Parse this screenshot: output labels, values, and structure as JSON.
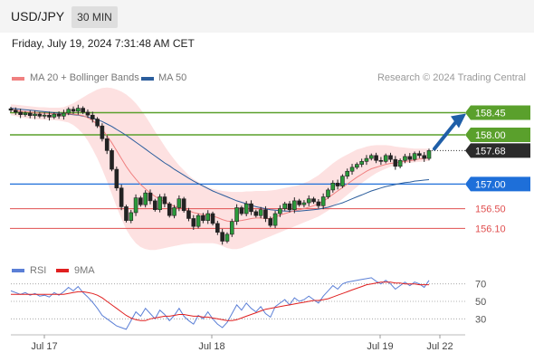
{
  "header": {
    "symbol": "USD/JPY",
    "timeframe": "30 MIN"
  },
  "timestamp": "Friday, July 19, 2024 7:31:48 AM CET",
  "legend": {
    "item1": {
      "label": "MA 20 + Bollinger Bands",
      "color": "#f08080"
    },
    "item2": {
      "label": "MA 50",
      "color": "#2b5d9c"
    }
  },
  "credit": "Research © 2024 Trading Central",
  "rsi_legend": {
    "item1": {
      "label": "RSI",
      "color": "#5b7fd6"
    },
    "item2": {
      "label": "9MA",
      "color": "#e02020"
    }
  },
  "chart_data": [
    {
      "type": "candlestick",
      "ylim": [
        155.5,
        158.9
      ],
      "x_ticks": [
        "Jul 17",
        "Jul 18",
        "Jul 19",
        "Jul 22"
      ],
      "last_price": 157.68,
      "levels": [
        {
          "value": 158.45,
          "label": "158.45",
          "style": "resistance",
          "color": "#5aa02c"
        },
        {
          "value": 158.0,
          "label": "158.00",
          "style": "resistance",
          "color": "#5aa02c"
        },
        {
          "value": 157.0,
          "label": "157.00",
          "style": "pivot",
          "color": "#1e6fd9"
        },
        {
          "value": 156.5,
          "label": "156.50",
          "style": "support",
          "color": "#e05050"
        },
        {
          "value": 156.1,
          "label": "156.10",
          "style": "support",
          "color": "#e05050"
        }
      ],
      "closes": [
        158.5,
        158.46,
        158.41,
        158.44,
        158.39,
        158.42,
        158.38,
        158.4,
        158.36,
        158.42,
        158.38,
        158.44,
        158.52,
        158.48,
        158.54,
        158.46,
        158.4,
        158.32,
        158.18,
        157.92,
        157.68,
        157.3,
        156.92,
        156.54,
        156.26,
        156.42,
        156.72,
        156.58,
        156.82,
        156.66,
        156.48,
        156.74,
        156.6,
        156.36,
        156.52,
        156.7,
        156.46,
        156.3,
        156.14,
        156.36,
        156.26,
        156.4,
        156.2,
        156.02,
        155.84,
        155.98,
        156.24,
        156.52,
        156.4,
        156.6,
        156.44,
        156.36,
        156.48,
        156.3,
        156.16,
        156.4,
        156.5,
        156.6,
        156.48,
        156.66,
        156.58,
        156.62,
        156.7,
        156.64,
        156.56,
        156.74,
        156.88,
        157.02,
        156.96,
        157.16,
        157.26,
        157.34,
        157.4,
        157.46,
        157.52,
        157.58,
        157.48,
        157.46,
        157.58,
        157.5,
        157.36,
        157.48,
        157.56,
        157.5,
        157.62,
        157.58,
        157.52,
        157.68
      ],
      "ma20": [
        158.52,
        158.5,
        158.48,
        158.47,
        158.46,
        158.45,
        158.44,
        158.44,
        158.43,
        158.43,
        158.42,
        158.42,
        158.43,
        158.42,
        158.41,
        158.39,
        158.35,
        158.29,
        158.21,
        158.11,
        157.98,
        157.84,
        157.68,
        157.52,
        157.36,
        157.22,
        157.1,
        156.99,
        156.9,
        156.82,
        156.75,
        156.69,
        156.64,
        156.59,
        156.55,
        156.52,
        156.5,
        156.46,
        156.42,
        156.4,
        156.38,
        156.37,
        156.35,
        156.32,
        156.28,
        156.25,
        156.24,
        156.25,
        156.26,
        156.28,
        156.3,
        156.31,
        156.31,
        156.3,
        156.3,
        156.33,
        156.37,
        156.4,
        156.43,
        156.46,
        156.48,
        156.5,
        156.53,
        156.56,
        156.6,
        156.65,
        156.72,
        156.79,
        156.86,
        156.93,
        157.0,
        157.07,
        157.14,
        157.2,
        157.26,
        157.31,
        157.34,
        157.37,
        157.4,
        157.42,
        157.43,
        157.45,
        157.46,
        157.47,
        157.49,
        157.51,
        157.52,
        157.54
      ],
      "bb_upper": [
        158.62,
        158.61,
        158.6,
        158.59,
        158.58,
        158.57,
        158.56,
        158.56,
        158.55,
        158.55,
        158.55,
        158.56,
        158.6,
        158.64,
        158.7,
        158.76,
        158.82,
        158.87,
        158.92,
        158.95,
        158.96,
        158.95,
        158.92,
        158.88,
        158.82,
        158.74,
        158.64,
        158.52,
        158.38,
        158.23,
        158.07,
        157.92,
        157.77,
        157.63,
        157.5,
        157.38,
        157.28,
        157.18,
        157.1,
        157.04,
        156.98,
        156.94,
        156.9,
        156.88,
        156.86,
        156.85,
        156.84,
        156.84,
        156.84,
        156.85,
        156.85,
        156.86,
        156.86,
        156.86,
        156.87,
        156.88,
        156.9,
        156.92,
        156.94,
        156.96,
        156.98,
        157.02,
        157.06,
        157.12,
        157.18,
        157.26,
        157.34,
        157.42,
        157.49,
        157.55,
        157.6,
        157.65,
        157.7,
        157.73,
        157.76,
        157.78,
        157.79,
        157.79,
        157.79,
        157.78,
        157.76,
        157.75,
        157.74,
        157.73,
        157.72,
        157.72,
        157.72,
        157.72
      ],
      "bb_lower": [
        158.4,
        158.38,
        158.36,
        158.34,
        158.33,
        158.32,
        158.31,
        158.31,
        158.3,
        158.3,
        158.29,
        158.27,
        158.25,
        158.2,
        158.12,
        158.02,
        157.88,
        157.71,
        157.52,
        157.3,
        157.06,
        156.8,
        156.54,
        156.3,
        156.08,
        155.92,
        155.8,
        155.72,
        155.68,
        155.66,
        155.66,
        155.68,
        155.7,
        155.72,
        155.74,
        155.76,
        155.78,
        155.79,
        155.8,
        155.8,
        155.8,
        155.8,
        155.8,
        155.78,
        155.74,
        155.7,
        155.68,
        155.68,
        155.7,
        155.74,
        155.78,
        155.82,
        155.86,
        155.9,
        155.94,
        155.98,
        156.02,
        156.06,
        156.1,
        156.14,
        156.18,
        156.22,
        156.26,
        156.3,
        156.34,
        156.4,
        156.46,
        156.54,
        156.62,
        156.7,
        156.78,
        156.86,
        156.94,
        157.02,
        157.09,
        157.16,
        157.22,
        157.27,
        157.31,
        157.35,
        157.38,
        157.4,
        157.42,
        157.43,
        157.44,
        157.45,
        157.46,
        157.47
      ],
      "ma50": [
        158.54,
        158.53,
        158.52,
        158.51,
        158.5,
        158.49,
        158.48,
        158.47,
        158.46,
        158.45,
        158.44,
        158.43,
        158.42,
        158.41,
        158.4,
        158.38,
        158.36,
        158.34,
        158.31,
        158.27,
        158.22,
        158.17,
        158.11,
        158.05,
        157.99,
        157.92,
        157.85,
        157.78,
        157.71,
        157.64,
        157.57,
        157.5,
        157.43,
        157.37,
        157.3,
        157.24,
        157.18,
        157.12,
        157.06,
        157.01,
        156.96,
        156.91,
        156.86,
        156.82,
        156.78,
        156.74,
        156.7,
        156.66,
        156.63,
        156.6,
        156.57,
        156.54,
        156.52,
        156.5,
        156.48,
        156.47,
        156.46,
        156.45,
        156.45,
        156.45,
        156.45,
        156.46,
        156.47,
        156.48,
        156.49,
        156.51,
        156.53,
        156.56,
        156.59,
        156.62,
        156.66,
        156.7,
        156.74,
        156.78,
        156.82,
        156.86,
        156.89,
        156.92,
        156.95,
        156.97,
        156.99,
        157.01,
        157.03,
        157.04,
        157.06,
        157.07,
        157.08,
        157.09
      ]
    },
    {
      "type": "line",
      "yticks": [
        70,
        50,
        30
      ],
      "ylim": [
        20,
        80
      ],
      "series": [
        {
          "name": "RSI",
          "values": [
            62,
            60,
            58,
            60,
            57,
            59,
            56,
            57,
            55,
            60,
            57,
            61,
            66,
            62,
            67,
            60,
            55,
            49,
            42,
            34,
            30,
            26,
            22,
            20,
            18,
            28,
            38,
            33,
            42,
            36,
            30,
            40,
            35,
            28,
            34,
            42,
            33,
            28,
            24,
            34,
            30,
            38,
            30,
            24,
            20,
            26,
            36,
            46,
            40,
            48,
            42,
            38,
            44,
            36,
            32,
            44,
            48,
            52,
            46,
            54,
            50,
            52,
            56,
            52,
            48,
            56,
            62,
            68,
            64,
            70,
            72,
            73,
            74,
            75,
            76,
            77,
            73,
            70,
            74,
            70,
            64,
            68,
            72,
            68,
            72,
            70,
            66,
            74
          ]
        },
        {
          "name": "9MA",
          "values": [
            58,
            58,
            58,
            58,
            58,
            58,
            58,
            58,
            58,
            58,
            58,
            58,
            59,
            60,
            61,
            61,
            60,
            59,
            57,
            54,
            50,
            46,
            42,
            38,
            34,
            31,
            29,
            28,
            28,
            30,
            31,
            32,
            33,
            33,
            34,
            35,
            35,
            34,
            33,
            33,
            32,
            32,
            31,
            30,
            29,
            28,
            28,
            29,
            31,
            33,
            35,
            37,
            39,
            41,
            42,
            43,
            44,
            45,
            46,
            47,
            48,
            49,
            50,
            51,
            51,
            52,
            53,
            55,
            57,
            59,
            61,
            63,
            65,
            67,
            69,
            70,
            71,
            72,
            72,
            72,
            71,
            71,
            70,
            70,
            70,
            69,
            69,
            69
          ]
        }
      ]
    }
  ]
}
